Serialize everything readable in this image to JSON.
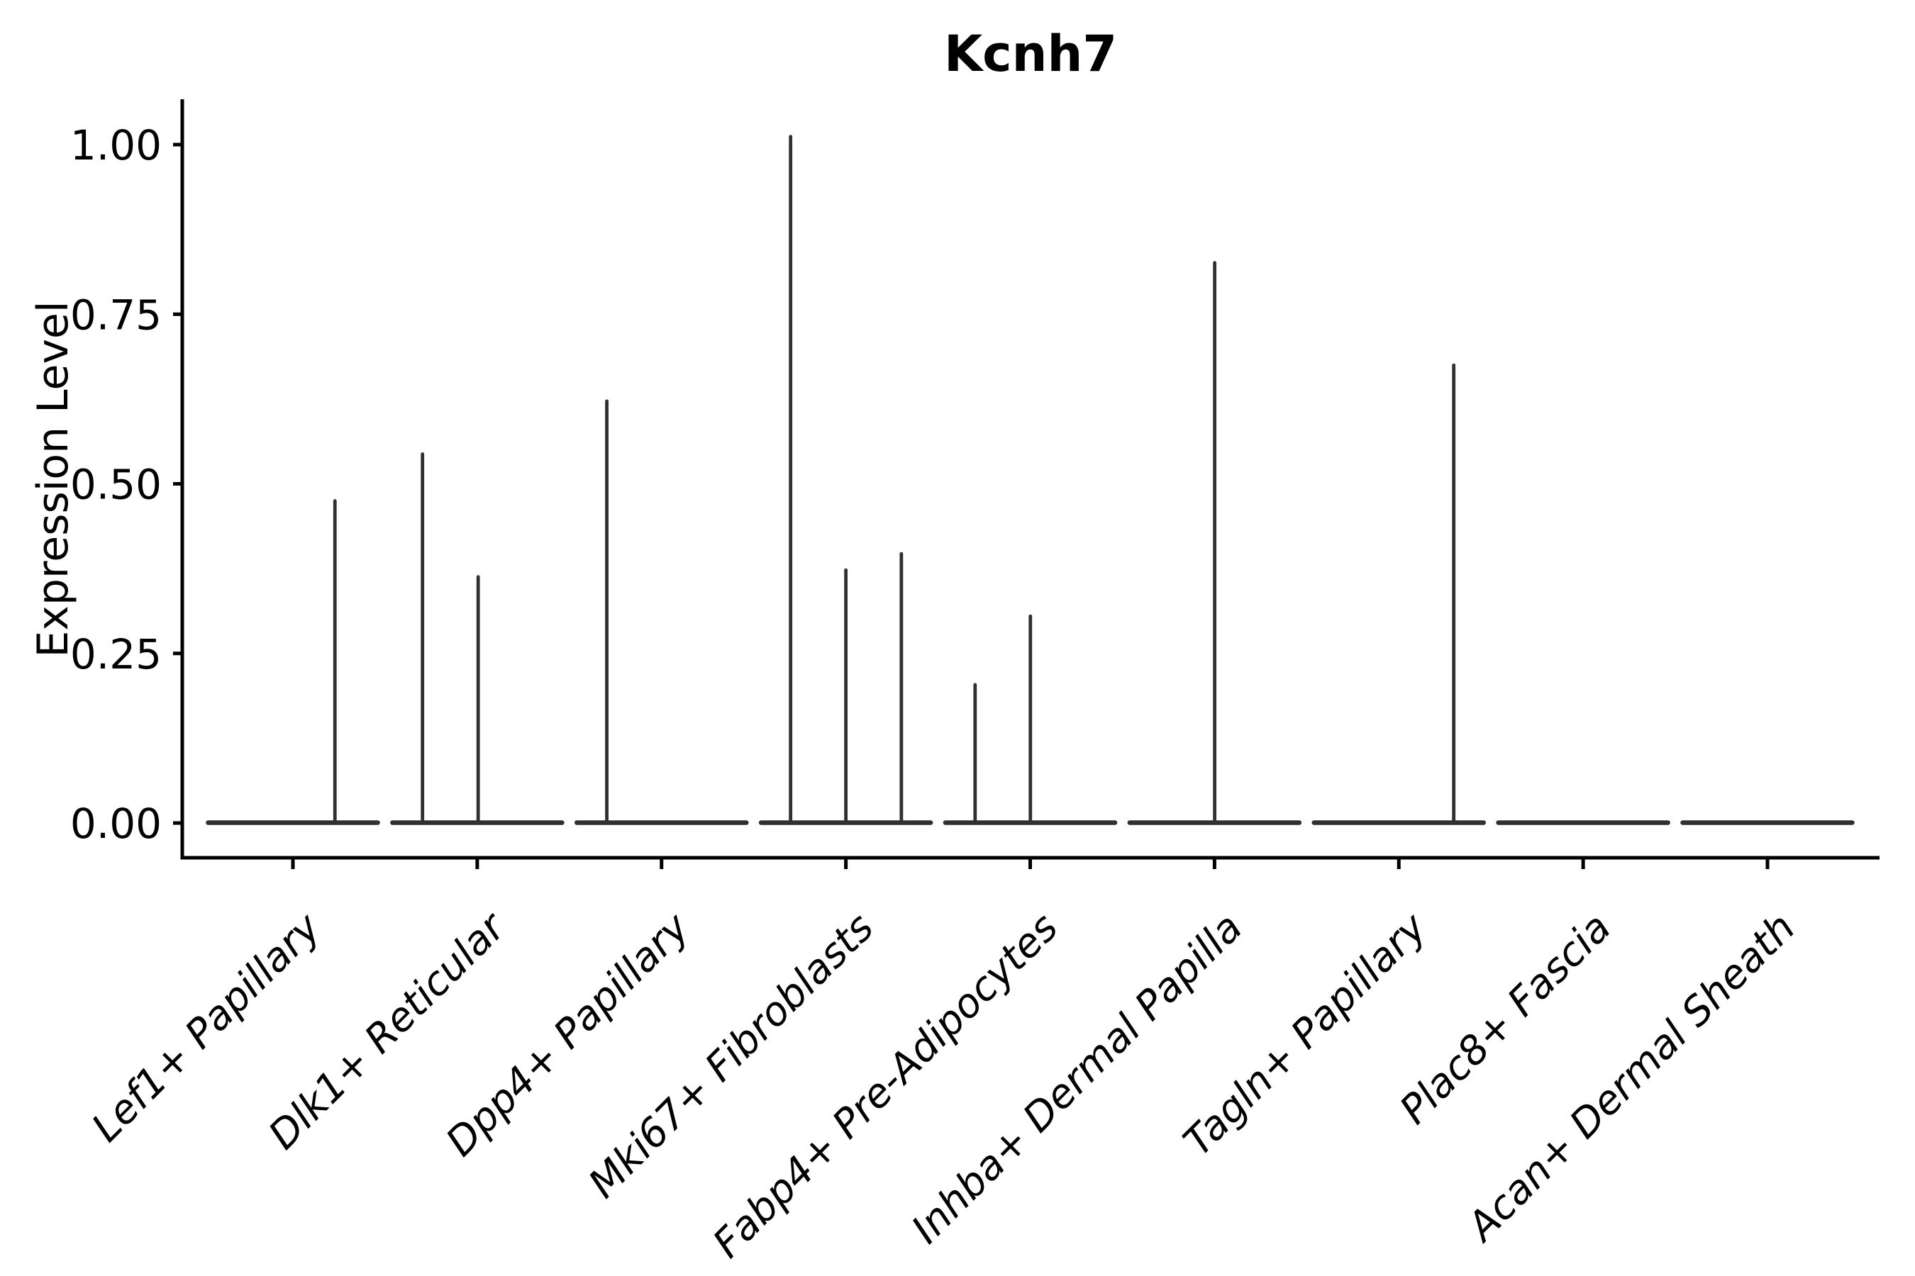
{
  "figure": {
    "title": "Kcnh7",
    "y_axis": {
      "label": "Expression Level",
      "tick_labels": [
        "0.00",
        "0.25",
        "0.50",
        "0.75",
        "1.00"
      ]
    },
    "x_axis": {
      "label": "",
      "tick_labels": [
        "Lef1+ Papillary",
        "Dlk1+ Reticular",
        "Dpp4+ Papillary",
        "Mki67+ Fibroblasts",
        "Fabp4+ Pre-Adipocytes",
        "Inhba+ Dermal Papilla",
        "Tagln+ Papillary",
        "Plac8+ Fascia",
        "Acan+ Dermal Sheath"
      ]
    }
  },
  "colors": {
    "violin": "#303030",
    "axis": "#000000",
    "background": "#ffffff"
  },
  "chart_data": {
    "type": "violin",
    "title": "Kcnh7",
    "xlabel": "",
    "ylabel": "Expression Level",
    "grid": false,
    "legend": "none",
    "categories": [
      "Lef1+ Papillary",
      "Dlk1+ Reticular",
      "Dpp4+ Papillary",
      "Mki67+ Fibroblasts",
      "Fabp4+ Pre-Adipocytes",
      "Inhba+ Dermal Papilla",
      "Tagln+ Papillary",
      "Plac8+ Fascia",
      "Acan+ Dermal Sheath"
    ],
    "ylim": [
      0,
      1.067
    ],
    "yticks": [
      0.0,
      0.25,
      0.5,
      0.75,
      1.0
    ],
    "ytick_labels": [
      "0.00",
      "0.25",
      "0.50",
      "0.75",
      "1.00"
    ],
    "violin_base_halfwidth": 0.46,
    "series": [
      {
        "category": "Lef1+ Papillary",
        "baseline_value": 0,
        "spikes": [
          {
            "offset": 0.228,
            "value": 0.478
          }
        ]
      },
      {
        "category": "Dlk1+ Reticular",
        "baseline_value": 0,
        "spikes": [
          {
            "offset": -0.297,
            "value": 0.547
          },
          {
            "offset": 0.005,
            "value": 0.366
          }
        ]
      },
      {
        "category": "Dpp4+ Papillary",
        "baseline_value": 0,
        "spikes": [
          {
            "offset": -0.297,
            "value": 0.625
          }
        ]
      },
      {
        "category": "Mki67+ Fibroblasts",
        "baseline_value": 0,
        "spikes": [
          {
            "offset": -0.3,
            "value": 1.015
          },
          {
            "offset": 0.0,
            "value": 0.376
          },
          {
            "offset": 0.301,
            "value": 0.4
          }
        ]
      },
      {
        "category": "Fabp4+ Pre-Adipocytes",
        "baseline_value": 0,
        "spikes": [
          {
            "offset": -0.299,
            "value": 0.207
          },
          {
            "offset": 0.001,
            "value": 0.308
          }
        ]
      },
      {
        "category": "Inhba+ Dermal Papilla",
        "baseline_value": 0,
        "spikes": [
          {
            "offset": 0.001,
            "value": 0.829
          }
        ]
      },
      {
        "category": "Tagln+ Papillary",
        "baseline_value": 0,
        "spikes": [
          {
            "offset": 0.298,
            "value": 0.678
          }
        ]
      },
      {
        "category": "Plac8+ Fascia",
        "baseline_value": 0,
        "spikes": []
      },
      {
        "category": "Acan+ Dermal Sheath",
        "baseline_value": 0,
        "spikes": []
      }
    ]
  }
}
